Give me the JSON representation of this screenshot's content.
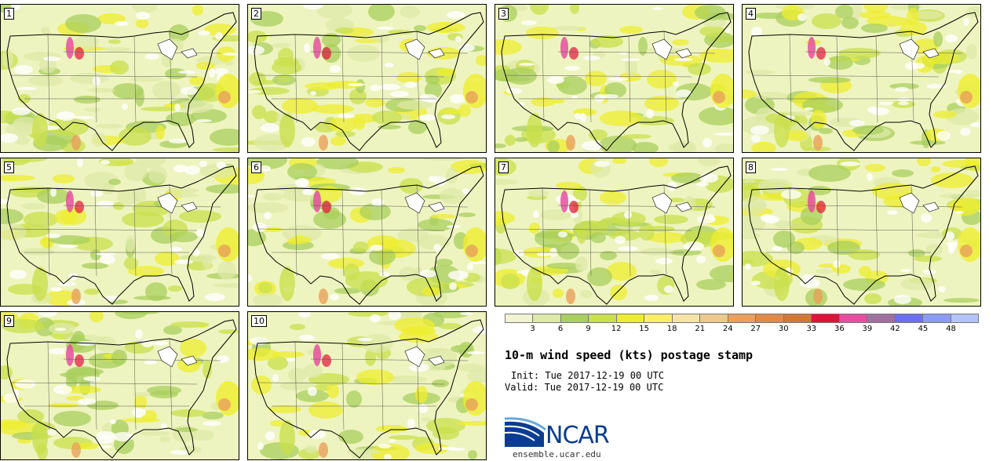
{
  "figure": {
    "title": "10-m wind speed (kts) postage stamp",
    "init": "Init: Tue 2017-12-19 00 UTC",
    "valid": "Valid: Tue 2017-12-19 00 UTC"
  },
  "members": [
    "1",
    "2",
    "3",
    "4",
    "5",
    "6",
    "7",
    "8",
    "9",
    "10"
  ],
  "colorbar": {
    "ticks": [
      "3",
      "6",
      "9",
      "12",
      "15",
      "18",
      "21",
      "24",
      "27",
      "30",
      "33",
      "36",
      "39",
      "42",
      "45",
      "48"
    ],
    "colors": [
      "#f2f4d2",
      "#dde9a8",
      "#a9cf5e",
      "#c9e04c",
      "#eded2e",
      "#fbef68",
      "#f6e3a8",
      "#ecc98c",
      "#e9a05a",
      "#e08a46",
      "#d47838",
      "#e2123a",
      "#e74da0",
      "#a070a0",
      "#6e6ef0",
      "#8c9cf4",
      "#b4c4f6"
    ]
  },
  "logo": {
    "name": "NCAR",
    "url": "ensemble.ucar.edu"
  }
}
